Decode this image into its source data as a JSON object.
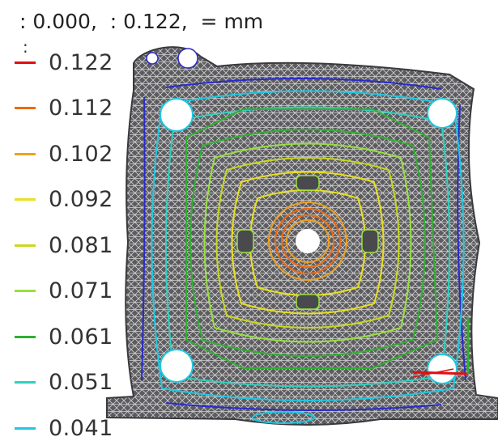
{
  "header": {
    "text": ": 0.000,  : 0.122,  = mm"
  },
  "legend": {
    "stray_marker": ":",
    "items": [
      {
        "label": "0.122",
        "color": "#e01010"
      },
      {
        "label": "0.112",
        "color": "#f06a10"
      },
      {
        "label": "0.102",
        "color": "#f0a020"
      },
      {
        "label": "0.092",
        "color": "#e8e020"
      },
      {
        "label": "0.081",
        "color": "#c8d820"
      },
      {
        "label": "0.071",
        "color": "#98e040"
      },
      {
        "label": "0.061",
        "color": "#30b030"
      },
      {
        "label": "0.051",
        "color": "#30d0c0"
      },
      {
        "label": "0.041",
        "color": "#20c8e0"
      }
    ]
  },
  "colors": {
    "mesh_fill": "#5a5a5e",
    "mesh_line": "#c8c8c8",
    "outline": "#2a2acc",
    "axis_x": "#e01010",
    "axis_y": "#30b030"
  }
}
